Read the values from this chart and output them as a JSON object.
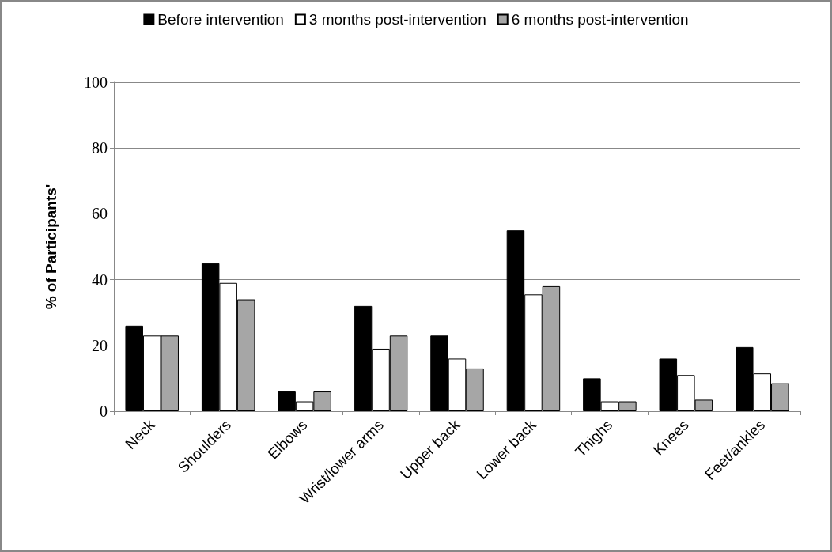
{
  "chart_data": {
    "type": "bar",
    "ylabel": "% of Participants'",
    "categories": [
      "Neck",
      "Shoulders",
      "Elbows",
      "Wrist/lower arms",
      "Upper back",
      "Lower back",
      "Thighs",
      "Knees",
      "Feet/ankles"
    ],
    "series": [
      {
        "name": "Before intervention",
        "color": "#000000",
        "values": [
          26,
          45,
          6,
          32,
          23,
          55,
          10,
          16,
          19.5
        ]
      },
      {
        "name": "3 months post-intervention",
        "color": "#ffffff",
        "values": [
          23,
          39,
          3,
          19,
          16,
          35.5,
          3,
          11,
          11.5
        ]
      },
      {
        "name": "6 months post-intervention",
        "color": "#a6a6a6",
        "values": [
          23,
          34,
          6,
          23,
          13,
          38,
          3,
          3.5,
          8.5
        ]
      }
    ],
    "ylim": [
      0,
      100
    ],
    "yticks": [
      0,
      20,
      40,
      60,
      80,
      100
    ],
    "grid": "y",
    "legend": "top"
  }
}
